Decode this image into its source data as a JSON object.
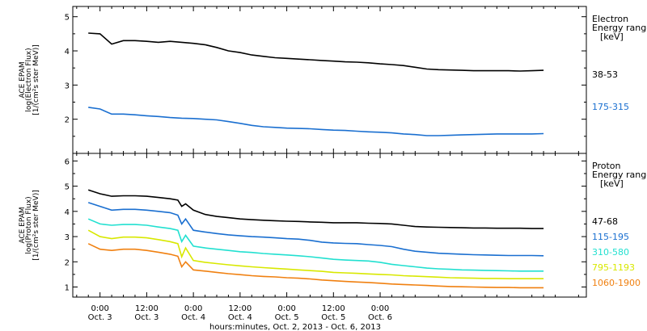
{
  "chart_data": [
    {
      "type": "line",
      "panel": "electron",
      "ylabel_lines": [
        "ACE EPAM",
        "log(Electron Flux)",
        "[1/(cm²s ster MeV)]"
      ],
      "ylim": [
        1,
        5.3
      ],
      "yticks": [
        2,
        3,
        4,
        5
      ],
      "legend_title": [
        "Electron",
        "Energy range",
        "[keV]"
      ],
      "x": [
        -3,
        0,
        3,
        6,
        9,
        12,
        15,
        18,
        21,
        24,
        27,
        30,
        33,
        36,
        39,
        42,
        45,
        48,
        51,
        54,
        57,
        60,
        63,
        66,
        69,
        72,
        75,
        78,
        81,
        84,
        87,
        90,
        93,
        96,
        99,
        102,
        105,
        108,
        111,
        114
      ],
      "series": [
        {
          "name": "38-53",
          "color": "#000000",
          "values": [
            4.52,
            4.5,
            4.2,
            4.3,
            4.3,
            4.28,
            4.25,
            4.28,
            4.25,
            4.22,
            4.18,
            4.1,
            4.0,
            3.95,
            3.88,
            3.84,
            3.8,
            3.78,
            3.76,
            3.74,
            3.72,
            3.7,
            3.68,
            3.67,
            3.65,
            3.62,
            3.6,
            3.57,
            3.52,
            3.47,
            3.45,
            3.44,
            3.43,
            3.42,
            3.42,
            3.42,
            3.42,
            3.41,
            3.42,
            3.43
          ]
        },
        {
          "name": "175-315",
          "color": "#1a6fd0",
          "values": [
            2.35,
            2.3,
            2.15,
            2.15,
            2.13,
            2.1,
            2.08,
            2.05,
            2.03,
            2.02,
            2.0,
            1.98,
            1.93,
            1.88,
            1.82,
            1.78,
            1.76,
            1.74,
            1.73,
            1.72,
            1.7,
            1.68,
            1.67,
            1.65,
            1.63,
            1.62,
            1.6,
            1.57,
            1.55,
            1.52,
            1.52,
            1.53,
            1.54,
            1.55,
            1.56,
            1.57,
            1.57,
            1.57,
            1.57,
            1.58
          ]
        }
      ]
    },
    {
      "type": "line",
      "panel": "proton",
      "ylabel_lines": [
        "ACE EPAM",
        "log(Proton Flux)",
        "[1/(cm²s ster MeV)]"
      ],
      "ylim": [
        0.6,
        6.3
      ],
      "yticks": [
        1,
        2,
        3,
        4,
        5,
        6
      ],
      "legend_title": [
        "Proton",
        "Energy range",
        "[keV]"
      ],
      "x": [
        -3,
        0,
        3,
        6,
        9,
        12,
        15,
        18,
        20,
        21,
        22,
        24,
        27,
        30,
        33,
        36,
        39,
        42,
        45,
        48,
        51,
        54,
        57,
        60,
        63,
        66,
        69,
        72,
        75,
        78,
        81,
        84,
        87,
        90,
        93,
        96,
        99,
        102,
        105,
        108,
        111,
        114
      ],
      "series": [
        {
          "name": "47-68",
          "color": "#000000",
          "values": [
            4.85,
            4.7,
            4.6,
            4.62,
            4.62,
            4.6,
            4.55,
            4.5,
            4.45,
            4.2,
            4.3,
            4.05,
            3.88,
            3.8,
            3.75,
            3.7,
            3.67,
            3.65,
            3.63,
            3.61,
            3.6,
            3.58,
            3.57,
            3.55,
            3.55,
            3.55,
            3.53,
            3.52,
            3.5,
            3.45,
            3.4,
            3.38,
            3.37,
            3.36,
            3.35,
            3.34,
            3.34,
            3.33,
            3.33,
            3.33,
            3.32,
            3.32
          ]
        },
        {
          "name": "115-195",
          "color": "#1a6fd0",
          "values": [
            4.35,
            4.2,
            4.05,
            4.08,
            4.08,
            4.05,
            4.0,
            3.95,
            3.85,
            3.5,
            3.7,
            3.25,
            3.18,
            3.12,
            3.07,
            3.03,
            3.0,
            2.98,
            2.95,
            2.92,
            2.9,
            2.85,
            2.78,
            2.75,
            2.73,
            2.72,
            2.68,
            2.65,
            2.6,
            2.5,
            2.42,
            2.38,
            2.34,
            2.32,
            2.3,
            2.28,
            2.27,
            2.26,
            2.25,
            2.25,
            2.25,
            2.24
          ]
        },
        {
          "name": "310-580",
          "color": "#22e0d0",
          "values": [
            3.7,
            3.5,
            3.45,
            3.48,
            3.48,
            3.45,
            3.38,
            3.32,
            3.25,
            2.8,
            3.05,
            2.62,
            2.55,
            2.5,
            2.45,
            2.4,
            2.37,
            2.33,
            2.3,
            2.27,
            2.24,
            2.2,
            2.15,
            2.1,
            2.07,
            2.05,
            2.03,
            1.98,
            1.9,
            1.85,
            1.8,
            1.75,
            1.72,
            1.7,
            1.68,
            1.67,
            1.66,
            1.65,
            1.64,
            1.63,
            1.63,
            1.63
          ]
        },
        {
          "name": "795-1193",
          "color": "#d8e800",
          "values": [
            3.25,
            3.0,
            2.92,
            2.98,
            2.98,
            2.95,
            2.88,
            2.8,
            2.72,
            2.2,
            2.55,
            2.05,
            1.98,
            1.93,
            1.88,
            1.84,
            1.8,
            1.77,
            1.74,
            1.71,
            1.68,
            1.65,
            1.62,
            1.58,
            1.56,
            1.54,
            1.52,
            1.5,
            1.48,
            1.45,
            1.43,
            1.41,
            1.39,
            1.37,
            1.36,
            1.35,
            1.34,
            1.34,
            1.33,
            1.33,
            1.33,
            1.33
          ]
        },
        {
          "name": "1060-1900",
          "color": "#f08010",
          "values": [
            2.72,
            2.5,
            2.45,
            2.5,
            2.5,
            2.45,
            2.38,
            2.3,
            2.22,
            1.8,
            2.0,
            1.68,
            1.63,
            1.58,
            1.53,
            1.49,
            1.45,
            1.42,
            1.4,
            1.37,
            1.35,
            1.32,
            1.28,
            1.25,
            1.22,
            1.2,
            1.18,
            1.15,
            1.12,
            1.1,
            1.08,
            1.06,
            1.04,
            1.02,
            1.01,
            1.0,
            0.99,
            0.98,
            0.98,
            0.97,
            0.97,
            0.97
          ]
        }
      ]
    }
  ],
  "xaxis": {
    "xlim": [
      -7,
      125
    ],
    "ticks": [
      {
        "x": 0,
        "time": "0:00",
        "date": "Oct. 3"
      },
      {
        "x": 12,
        "time": "12:00",
        "date": "Oct. 3"
      },
      {
        "x": 24,
        "time": "0:00",
        "date": "Oct. 4"
      },
      {
        "x": 36,
        "time": "12:00",
        "date": "Oct. 4"
      },
      {
        "x": 48,
        "time": "0:00",
        "date": "Oct. 5"
      },
      {
        "x": 60,
        "time": "12:00",
        "date": "Oct. 5"
      },
      {
        "x": 72,
        "time": "0:00",
        "date": "Oct. 6"
      }
    ],
    "xlabel": "hours:minutes, Oct.  2, 2013 - Oct.  6, 2013"
  }
}
